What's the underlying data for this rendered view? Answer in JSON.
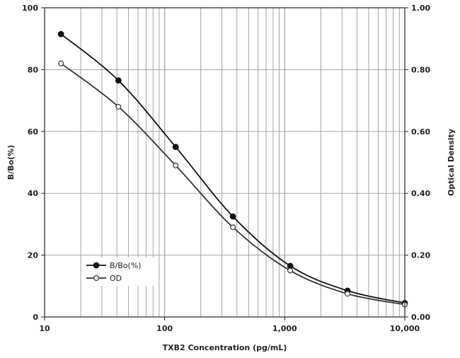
{
  "chart_data": {
    "type": "line",
    "xscale": "log",
    "xlim": [
      10,
      10000
    ],
    "ylim_left": [
      0,
      100
    ],
    "ylim_right": [
      0,
      1
    ],
    "xlabel": "TXB2 Concentration (pg/mL)",
    "ylabel_left": "B/Bo(%)",
    "ylabel_right": "Optical Density",
    "x_tick_labels": [
      "10",
      "100",
      "1,000",
      "10,000"
    ],
    "y_left_tick_labels": [
      "0",
      "20",
      "40",
      "60",
      "80",
      "100"
    ],
    "y_right_tick_labels": [
      "0.00",
      "0.20",
      "0.40",
      "0.60",
      "0.80",
      "1.00"
    ],
    "grid": true,
    "legend_position": "bottom-left",
    "colors": {
      "bbo": "#111111",
      "od": "#333333",
      "grid": "#999999"
    },
    "series": [
      {
        "name": "B/Bo(%)",
        "axis": "left",
        "marker": "filled-circle",
        "x": [
          13.7,
          41.2,
          123.5,
          370.4,
          1111,
          3333,
          10000
        ],
        "y": [
          91.5,
          76.5,
          55,
          32.5,
          16.5,
          8.5,
          4.5
        ]
      },
      {
        "name": "OD",
        "axis": "right",
        "marker": "open-circle",
        "x": [
          13.7,
          41.2,
          123.5,
          370.4,
          1111,
          3333,
          10000
        ],
        "y": [
          0.82,
          0.68,
          0.49,
          0.29,
          0.15,
          0.075,
          0.04
        ]
      }
    ]
  }
}
